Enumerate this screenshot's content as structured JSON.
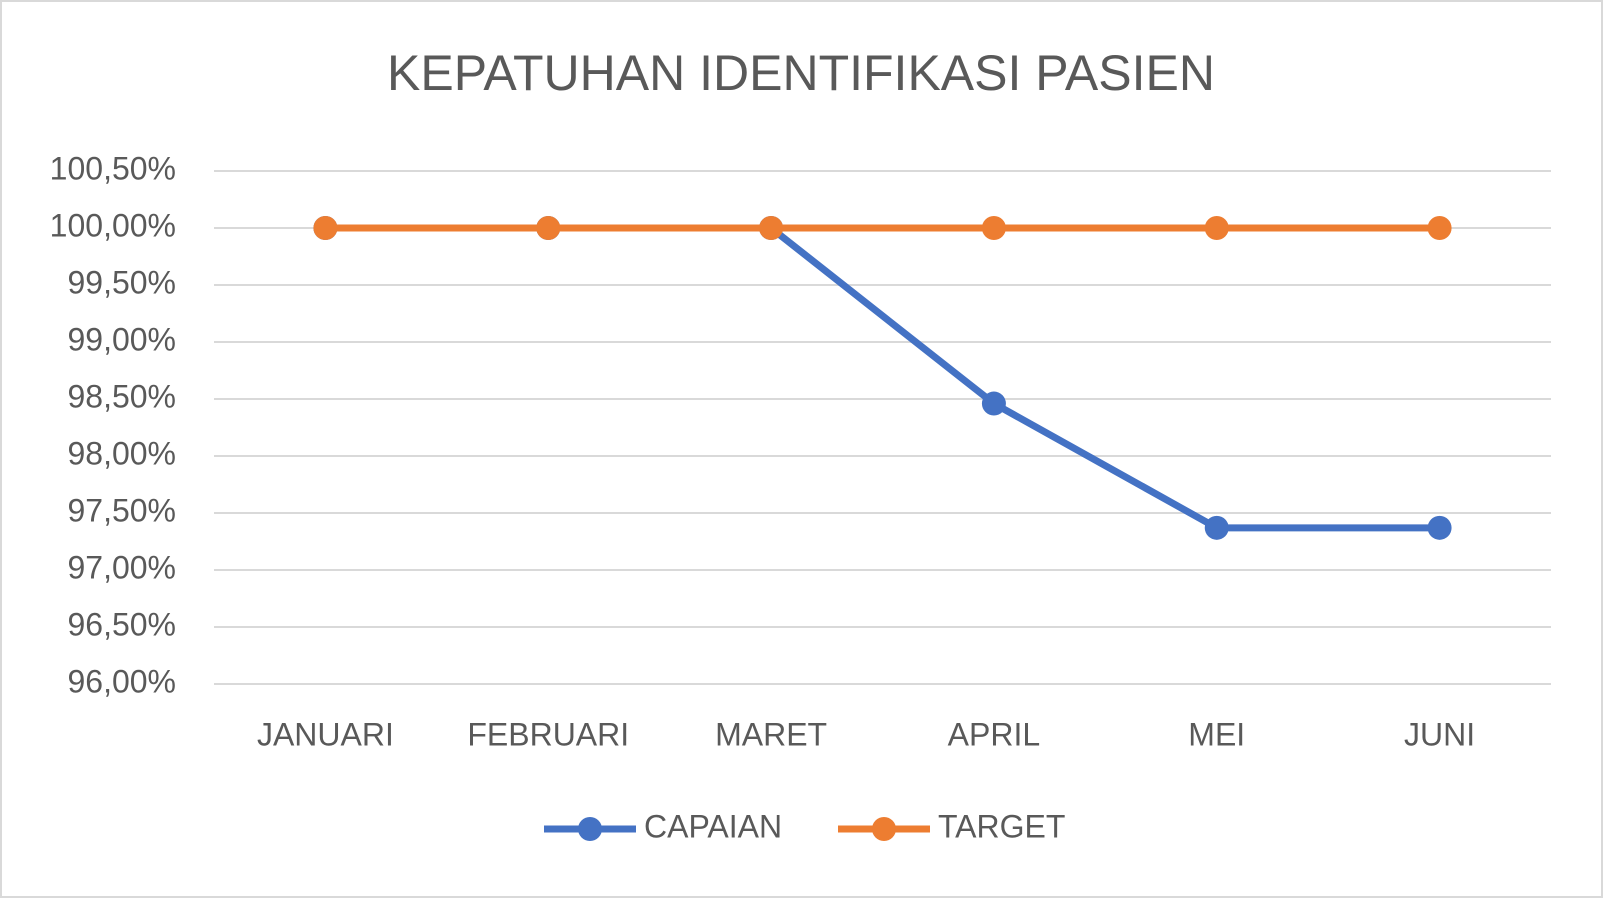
{
  "chart_data": {
    "type": "line",
    "title": "KEPATUHAN IDENTIFIKASI PASIEN",
    "categories": [
      "JANUARI",
      "FEBRUARI",
      "MARET",
      "APRIL",
      "MEI",
      "JUNI"
    ],
    "series": [
      {
        "name": "CAPAIAN",
        "color": "#4472c4",
        "values": [
          100,
          100,
          100,
          98.46,
          97.37,
          97.37
        ]
      },
      {
        "name": "TARGET",
        "color": "#ed7d31",
        "values": [
          100,
          100,
          100,
          100,
          100,
          100
        ]
      }
    ],
    "ylim": [
      96,
      100.5
    ],
    "yticks": [
      {
        "value": 96,
        "label": "96,00%"
      },
      {
        "value": 96.5,
        "label": "96,50%"
      },
      {
        "value": 97,
        "label": "97,00%"
      },
      {
        "value": 97.5,
        "label": "97,50%"
      },
      {
        "value": 98,
        "label": "98,00%"
      },
      {
        "value": 98.5,
        "label": "98,50%"
      },
      {
        "value": 99,
        "label": "99,00%"
      },
      {
        "value": 99.5,
        "label": "99,50%"
      },
      {
        "value": 100,
        "label": "100,00%"
      },
      {
        "value": 100.5,
        "label": "100,50%"
      }
    ],
    "grid": true,
    "legend": "bottom"
  }
}
